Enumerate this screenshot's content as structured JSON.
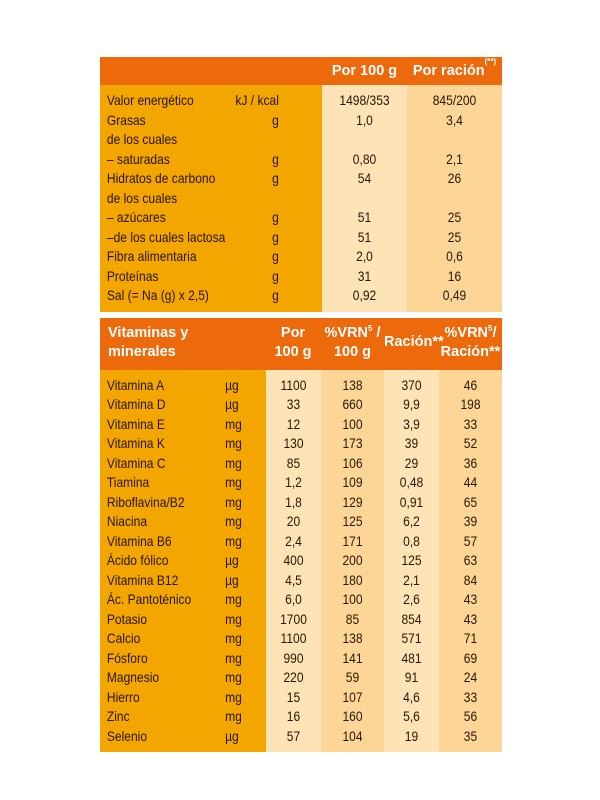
{
  "table1": {
    "headers": [
      "",
      "Por 100 g",
      "Por ración",
      "(**)"
    ],
    "rows": [
      {
        "label": "Valor energético",
        "unit": "kJ / kcal",
        "v100": "1498/353",
        "vrac": "845/200"
      },
      {
        "label": "Grasas",
        "unit": "g",
        "v100": "1,0",
        "vrac": "3,4"
      },
      {
        "label": "de los cuales",
        "unit": "",
        "v100": "",
        "vrac": ""
      },
      {
        "label": "– saturadas",
        "unit": "g",
        "v100": "0,80",
        "vrac": "2,1"
      },
      {
        "label": "Hidratos de carbono",
        "unit": "g",
        "v100": "54",
        "vrac": "26"
      },
      {
        "label": "de los cuales",
        "unit": "",
        "v100": "",
        "vrac": ""
      },
      {
        "label": "– azúcares",
        "unit": "g",
        "v100": "51",
        "vrac": "25"
      },
      {
        "label": "–de los cuales lactosa",
        "unit": "g",
        "v100": "51",
        "vrac": "25"
      },
      {
        "label": "Fibra alimentaria",
        "unit": "g",
        "v100": "2,0",
        "vrac": "0,6"
      },
      {
        "label": "Proteínas",
        "unit": "g",
        "v100": "31",
        "vrac": "16"
      },
      {
        "label": "Sal (= Na (g) x 2,5)",
        "unit": "g",
        "v100": "0,92",
        "vrac": "0,49"
      }
    ]
  },
  "table2": {
    "header": {
      "name_line1": "Vitaminas y",
      "name_line2": "minerales",
      "por_line1": "Por",
      "por_line2": "100 g",
      "vrn_line1": "%VRN",
      "vrn_sup": "5",
      "vrn_slash": " /",
      "vrn_line2": "100 g",
      "racion": "Ración**",
      "vrnr_line1": "%VRN",
      "vrnr_sup": "5",
      "vrnr_slash": "/",
      "vrnr_line2": "Ración**"
    },
    "rows": [
      {
        "name": "Vitamina A",
        "unit": "µg",
        "p100": "1100",
        "vrn100": "138",
        "rac": "370",
        "vrnrac": "46"
      },
      {
        "name": "Vitamina D",
        "unit": "µg",
        "p100": "33",
        "vrn100": "660",
        "rac": "9,9",
        "vrnrac": "198"
      },
      {
        "name": "Vitamina E",
        "unit": "mg",
        "p100": "12",
        "vrn100": "100",
        "rac": "3,9",
        "vrnrac": "33"
      },
      {
        "name": "Vitamina K",
        "unit": "mg",
        "p100": "130",
        "vrn100": "173",
        "rac": "39",
        "vrnrac": "52"
      },
      {
        "name": "Vitamina C",
        "unit": "mg",
        "p100": "85",
        "vrn100": "106",
        "rac": "29",
        "vrnrac": "36"
      },
      {
        "name": "Tiamina",
        "unit": "mg",
        "p100": "1,2",
        "vrn100": "109",
        "rac": "0,48",
        "vrnrac": "44"
      },
      {
        "name": "Riboflavina/B2",
        "unit": "mg",
        "p100": "1,8",
        "vrn100": "129",
        "rac": "0,91",
        "vrnrac": "65"
      },
      {
        "name": "Niacina",
        "unit": "mg",
        "p100": "20",
        "vrn100": "125",
        "rac": "6,2",
        "vrnrac": "39"
      },
      {
        "name": "Vitamina B6",
        "unit": "mg",
        "p100": "2,4",
        "vrn100": "171",
        "rac": "0,8",
        "vrnrac": "57"
      },
      {
        "name": "Ácido fólico",
        "unit": "µg",
        "p100": "400",
        "vrn100": "200",
        "rac": "125",
        "vrnrac": "63"
      },
      {
        "name": "Vitamina B12",
        "unit": "µg",
        "p100": "4,5",
        "vrn100": "180",
        "rac": "2,1",
        "vrnrac": "84"
      },
      {
        "name": "Ác. Pantoténico",
        "unit": "mg",
        "p100": "6,0",
        "vrn100": "100",
        "rac": "2,6",
        "vrnrac": "43"
      },
      {
        "name": "Potasio",
        "unit": "mg",
        "p100": "1700",
        "vrn100": "85",
        "rac": "854",
        "vrnrac": "43"
      },
      {
        "name": "Calcio",
        "unit": "mg",
        "p100": "1100",
        "vrn100": "138",
        "rac": "571",
        "vrnrac": "71"
      },
      {
        "name": "Fósforo",
        "unit": "mg",
        "p100": "990",
        "vrn100": "141",
        "rac": "481",
        "vrnrac": "69"
      },
      {
        "name": "Magnesio",
        "unit": "mg",
        "p100": "220",
        "vrn100": "59",
        "rac": "91",
        "vrnrac": "24"
      },
      {
        "name": "Hierro",
        "unit": "mg",
        "p100": "15",
        "vrn100": "107",
        "rac": "4,6",
        "vrnrac": "33"
      },
      {
        "name": "Zinc",
        "unit": "mg",
        "p100": "16",
        "vrn100": "160",
        "rac": "5,6",
        "vrnrac": "56"
      },
      {
        "name": "Selenio",
        "unit": "µg",
        "p100": "57",
        "vrn100": "104",
        "rac": "19",
        "vrnrac": "35"
      }
    ]
  }
}
